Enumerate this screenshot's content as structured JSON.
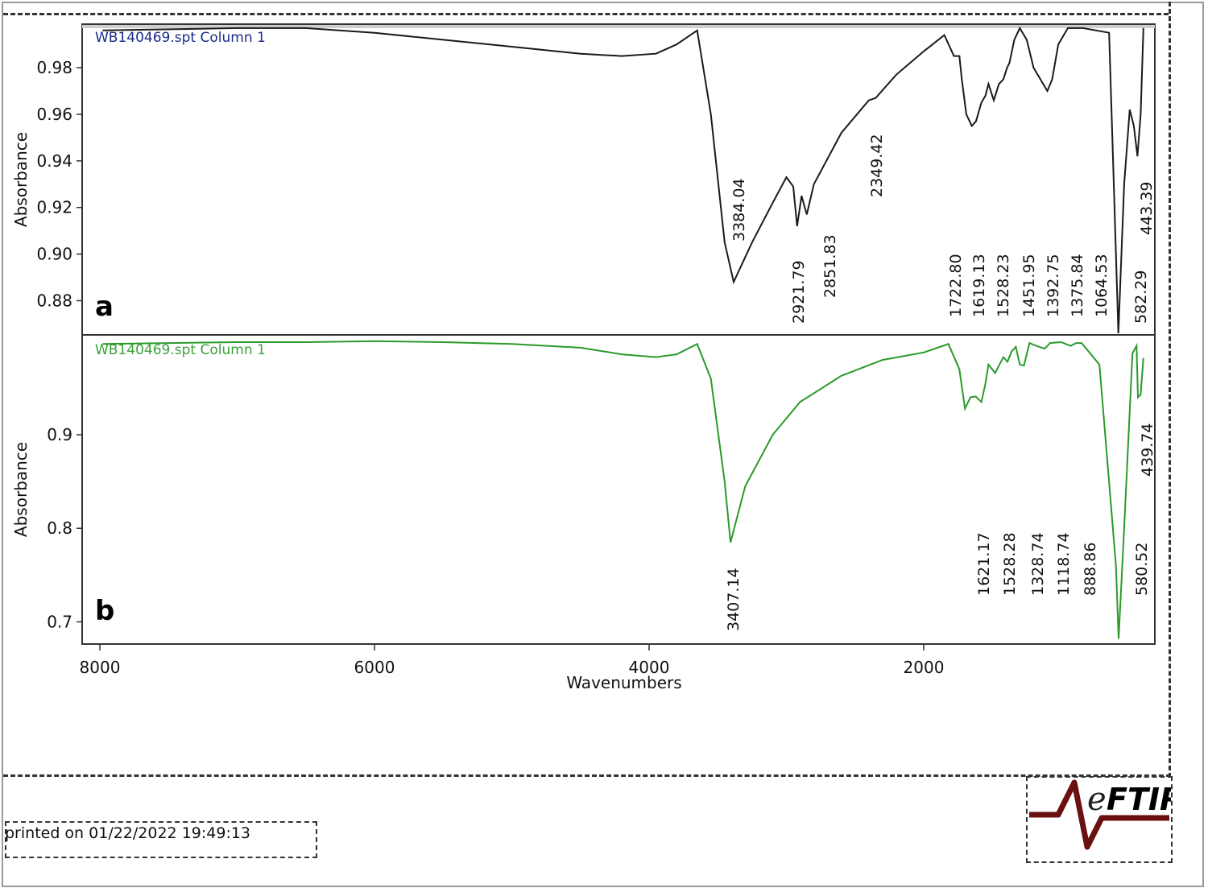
{
  "printed": "printed on 01/22/2022 19:49:13",
  "logo": {
    "letter": "e",
    "brand": "FTIR",
    "icon": "spectrum-peak-icon"
  },
  "colors": {
    "series_a": "#1a1a1a",
    "series_b": "#2a9a2a",
    "legend_a": "#1a2a8a",
    "legend_b": "#3aa03a",
    "logo_line": "#6b1010"
  },
  "chart_data": [
    {
      "type": "line",
      "panel_label": "a",
      "series_title": "WB140469.spt Column 1",
      "ylabel": "Absorbance",
      "xlabel": "",
      "xlim": [
        8000,
        50
      ],
      "ylim": [
        0.866,
        0.998
      ],
      "yticks": [
        0.88,
        0.9,
        0.92,
        0.94,
        0.96,
        0.98
      ],
      "ytick_labels": [
        "0.88",
        "0.90",
        "0.92",
        "0.94",
        "0.96",
        "0.98"
      ],
      "series": [
        {
          "x": [
            7980,
            7000,
            6500,
            6000,
            5500,
            5000,
            4500,
            4200,
            3950,
            3800,
            3650,
            3550,
            3450,
            3384,
            3250,
            3100,
            3000,
            2950,
            2921.79,
            2890,
            2851.83,
            2800,
            2600,
            2400,
            2349.42,
            2200,
            2000,
            1850,
            1780,
            1740,
            1722.8,
            1690,
            1650,
            1619.13,
            1580,
            1550,
            1528.23,
            1490,
            1451.95,
            1420,
            1392.75,
            1375.84,
            1340,
            1300,
            1250,
            1200,
            1100,
            1064.53,
            1020,
            950,
            900,
            840,
            650,
            600,
            582.29,
            540,
            500,
            470,
            443.39,
            420,
            400
          ],
          "y": [
            0.996,
            0.997,
            0.997,
            0.995,
            0.992,
            0.989,
            0.986,
            0.985,
            0.986,
            0.99,
            0.996,
            0.96,
            0.905,
            0.888,
            0.905,
            0.922,
            0.933,
            0.929,
            0.912,
            0.925,
            0.917,
            0.93,
            0.952,
            0.966,
            0.967,
            0.977,
            0.987,
            0.994,
            0.985,
            0.985,
            0.975,
            0.96,
            0.955,
            0.957,
            0.965,
            0.968,
            0.973,
            0.966,
            0.973,
            0.975,
            0.98,
            0.982,
            0.992,
            0.997,
            0.992,
            0.98,
            0.97,
            0.975,
            0.99,
            0.997,
            0.997,
            0.997,
            0.995,
            0.9,
            0.866,
            0.93,
            0.962,
            0.955,
            0.942,
            0.96,
            0.997
          ]
        }
      ],
      "peak_labels": [
        "3384.04",
        "2921.79",
        "2851.83",
        "2349.42",
        "1722.80",
        "1619.13",
        "1528.23",
        "1451.95",
        "1392.75",
        "1375.84",
        "1064.53",
        "582.29",
        "443.39"
      ]
    },
    {
      "type": "line",
      "panel_label": "b",
      "series_title": "WB140469.spt Column 1",
      "ylabel": "Absorbance",
      "xlabel": "Wavenumbers",
      "xlim": [
        8000,
        50
      ],
      "ylim": [
        0.678,
        1.005
      ],
      "yticks": [
        0.7,
        0.8,
        0.9
      ],
      "ytick_labels": [
        "0.7",
        "0.8",
        "0.9"
      ],
      "xticks": [
        8000,
        6000,
        4000,
        2000
      ],
      "xtick_labels": [
        "8000",
        "6000",
        "4000",
        "2000"
      ],
      "series": [
        {
          "x": [
            7980,
            7000,
            6500,
            6000,
            5500,
            5000,
            4500,
            4200,
            3950,
            3800,
            3650,
            3550,
            3450,
            3407.14,
            3300,
            3100,
            2900,
            2600,
            2300,
            2000,
            1820,
            1740,
            1700,
            1660,
            1621.17,
            1580,
            1550,
            1528.28,
            1480,
            1420,
            1390,
            1360,
            1328.74,
            1300,
            1270,
            1230,
            1180,
            1118.74,
            1080,
            1000,
            930,
            888.86,
            850,
            720,
            600,
            580.52,
            540,
            480,
            450,
            439.74,
            420,
            400
          ],
          "y": [
            0.997,
            0.999,
            0.999,
            1.0,
            0.999,
            0.997,
            0.993,
            0.986,
            0.983,
            0.986,
            0.997,
            0.96,
            0.85,
            0.785,
            0.845,
            0.9,
            0.935,
            0.963,
            0.98,
            0.988,
            0.997,
            0.97,
            0.928,
            0.94,
            0.941,
            0.935,
            0.955,
            0.975,
            0.966,
            0.983,
            0.978,
            0.989,
            0.994,
            0.975,
            0.974,
            0.998,
            0.995,
            0.992,
            0.998,
            0.999,
            0.995,
            0.998,
            0.998,
            0.975,
            0.76,
            0.682,
            0.8,
            0.987,
            0.995,
            0.94,
            0.943,
            0.982
          ]
        }
      ],
      "peak_labels": [
        "3407.14",
        "1621.17",
        "1528.28",
        "1328.74",
        "1118.74",
        "888.86",
        "580.52",
        "439.74"
      ]
    }
  ]
}
